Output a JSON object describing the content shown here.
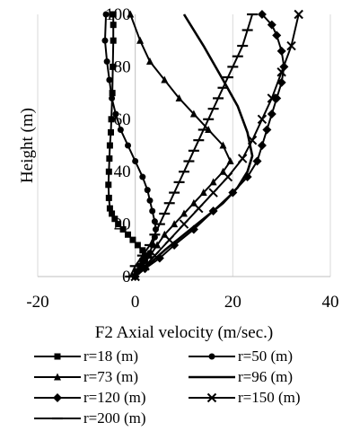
{
  "chart_data": {
    "type": "line",
    "title": "",
    "xlabel": "F2 Axial velocity (m/sec.)",
    "ylabel": "Height (m)",
    "xlim": [
      -20,
      40
    ],
    "ylim": [
      0,
      100
    ],
    "xticks": [
      -20,
      0,
      20,
      40
    ],
    "yticks": [
      0,
      20,
      40,
      60,
      80,
      100
    ],
    "grid": "vertical",
    "legend_position": "bottom",
    "series": [
      {
        "name": "r=18 (m)",
        "marker": "square",
        "x": [
          0.0,
          0.3,
          1.0,
          1.5,
          2.0,
          1.5,
          0.5,
          -0.5,
          -1.5,
          -2.5,
          -3.5,
          -4.2,
          -4.8,
          -5.2,
          -5.4,
          -5.5,
          -5.4,
          -5.3,
          -5.2,
          -5.0,
          -4.9,
          -4.7,
          -4.6,
          -4.5,
          -4.5,
          -4.5
        ],
        "y": [
          0,
          2,
          4,
          6,
          8,
          10,
          12,
          14,
          16,
          18,
          20,
          22,
          24,
          26,
          30,
          35,
          40,
          45,
          50,
          55,
          60,
          70,
          80,
          90,
          96,
          100
        ]
      },
      {
        "name": "r=50 (m)",
        "marker": "circle",
        "x": [
          0.0,
          1.0,
          2.0,
          3.0,
          3.5,
          4.0,
          4.2,
          4.0,
          3.5,
          3.0,
          2.5,
          1.5,
          0.0,
          -1.5,
          -3.0,
          -4.0,
          -4.8,
          -5.3,
          -5.8,
          -6.2,
          -6.0
        ],
        "y": [
          0,
          3,
          6,
          9,
          12,
          15,
          18,
          21,
          25,
          29,
          33,
          38,
          44,
          50,
          56,
          62,
          68,
          75,
          82,
          90,
          100
        ]
      },
      {
        "name": "r=73 (m)",
        "marker": "triangle",
        "x": [
          0,
          1.5,
          3.0,
          4.5,
          6.0,
          8.0,
          10.0,
          12.0,
          14.0,
          16.0,
          18.0,
          19.5,
          18.0,
          15.0,
          12.0,
          9.0,
          6.0,
          3.0,
          1.0,
          -1.0
        ],
        "y": [
          0,
          4,
          8,
          12,
          16,
          20,
          24,
          28,
          32,
          36,
          40,
          44,
          50,
          56,
          62,
          68,
          75,
          82,
          90,
          100
        ]
      },
      {
        "name": "r=96 (m)",
        "marker": "none",
        "x": [
          0,
          3,
          6,
          10,
          14,
          18,
          21,
          23,
          24,
          23,
          21,
          18,
          14,
          10
        ],
        "y": [
          0,
          5,
          10,
          16,
          22,
          28,
          34,
          40,
          46,
          55,
          65,
          75,
          88,
          100
        ]
      },
      {
        "name": "r=120 (m)",
        "marker": "diamond",
        "x": [
          0,
          2,
          5,
          8,
          12,
          16,
          20,
          23,
          25,
          26,
          27,
          28,
          29,
          30,
          30.5,
          30,
          29,
          28,
          26
        ],
        "y": [
          0,
          3,
          7,
          12,
          18,
          25,
          32,
          38,
          44,
          50,
          56,
          62,
          68,
          74,
          80,
          86,
          92,
          96,
          100
        ]
      },
      {
        "name": "r=150 (m)",
        "marker": "x",
        "x": [
          0,
          2,
          4,
          7,
          10,
          13,
          16,
          19,
          22,
          24,
          26,
          28,
          30,
          32,
          33.5
        ],
        "y": [
          0,
          4,
          8,
          14,
          20,
          26,
          32,
          38,
          45,
          52,
          60,
          68,
          78,
          88,
          100
        ]
      },
      {
        "name": "r=200 (m)",
        "marker": "bar",
        "x": [
          -1,
          0,
          1.5,
          3,
          4,
          5,
          6,
          7,
          8,
          9,
          10,
          11,
          12,
          13,
          14,
          15,
          16,
          17,
          18,
          19,
          20,
          21,
          22,
          23,
          24
        ],
        "y": [
          0,
          4,
          8,
          12,
          16,
          20,
          24,
          28,
          32,
          36,
          40,
          44,
          48,
          52,
          56,
          60,
          64,
          68,
          72,
          76,
          80,
          84,
          88,
          94,
          100
        ]
      }
    ]
  }
}
